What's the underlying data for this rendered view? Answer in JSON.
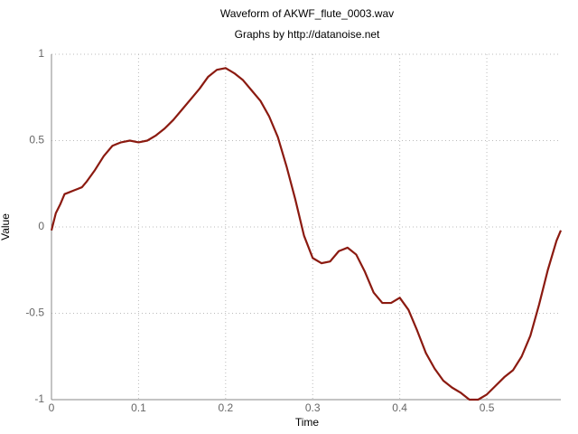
{
  "chart_data": {
    "type": "line",
    "title": "Waveform of AKWF_flute_0003.wav",
    "subtitle": "Graphs by http://datanoise.net",
    "xlabel": "Time",
    "ylabel": "Value",
    "x": [
      0,
      0.005,
      0.01,
      0.015,
      0.02,
      0.025,
      0.03,
      0.035,
      0.04,
      0.05,
      0.06,
      0.07,
      0.08,
      0.09,
      0.1,
      0.11,
      0.12,
      0.13,
      0.14,
      0.15,
      0.16,
      0.17,
      0.18,
      0.19,
      0.2,
      0.21,
      0.22,
      0.23,
      0.24,
      0.25,
      0.26,
      0.27,
      0.28,
      0.29,
      0.3,
      0.31,
      0.32,
      0.33,
      0.34,
      0.35,
      0.36,
      0.37,
      0.38,
      0.39,
      0.4,
      0.41,
      0.42,
      0.43,
      0.44,
      0.45,
      0.46,
      0.47,
      0.48,
      0.49,
      0.5,
      0.51,
      0.52,
      0.53,
      0.54,
      0.55,
      0.56,
      0.57,
      0.58,
      0.585
    ],
    "series": [
      {
        "color": "#8b1a10",
        "values": [
          -0.02,
          0.08,
          0.13,
          0.19,
          0.2,
          0.21,
          0.22,
          0.23,
          0.26,
          0.33,
          0.41,
          0.47,
          0.49,
          0.5,
          0.49,
          0.5,
          0.53,
          0.57,
          0.62,
          0.68,
          0.74,
          0.8,
          0.87,
          0.91,
          0.92,
          0.89,
          0.85,
          0.79,
          0.73,
          0.64,
          0.52,
          0.35,
          0.16,
          -0.05,
          -0.18,
          -0.21,
          -0.2,
          -0.14,
          -0.12,
          -0.16,
          -0.26,
          -0.38,
          -0.44,
          -0.44,
          -0.41,
          -0.48,
          -0.6,
          -0.73,
          -0.82,
          -0.89,
          -0.93,
          -0.96,
          -1.0,
          -1.0,
          -0.97,
          -0.92,
          -0.87,
          -0.83,
          -0.75,
          -0.63,
          -0.45,
          -0.25,
          -0.08,
          -0.02
        ]
      }
    ],
    "xlim": [
      0,
      0.585
    ],
    "ylim": [
      -1,
      1
    ],
    "xticks": [
      0,
      0.1,
      0.2,
      0.3,
      0.4,
      0.5
    ],
    "yticks": [
      -1,
      -0.5,
      0,
      0.5,
      1
    ],
    "grid": true
  }
}
